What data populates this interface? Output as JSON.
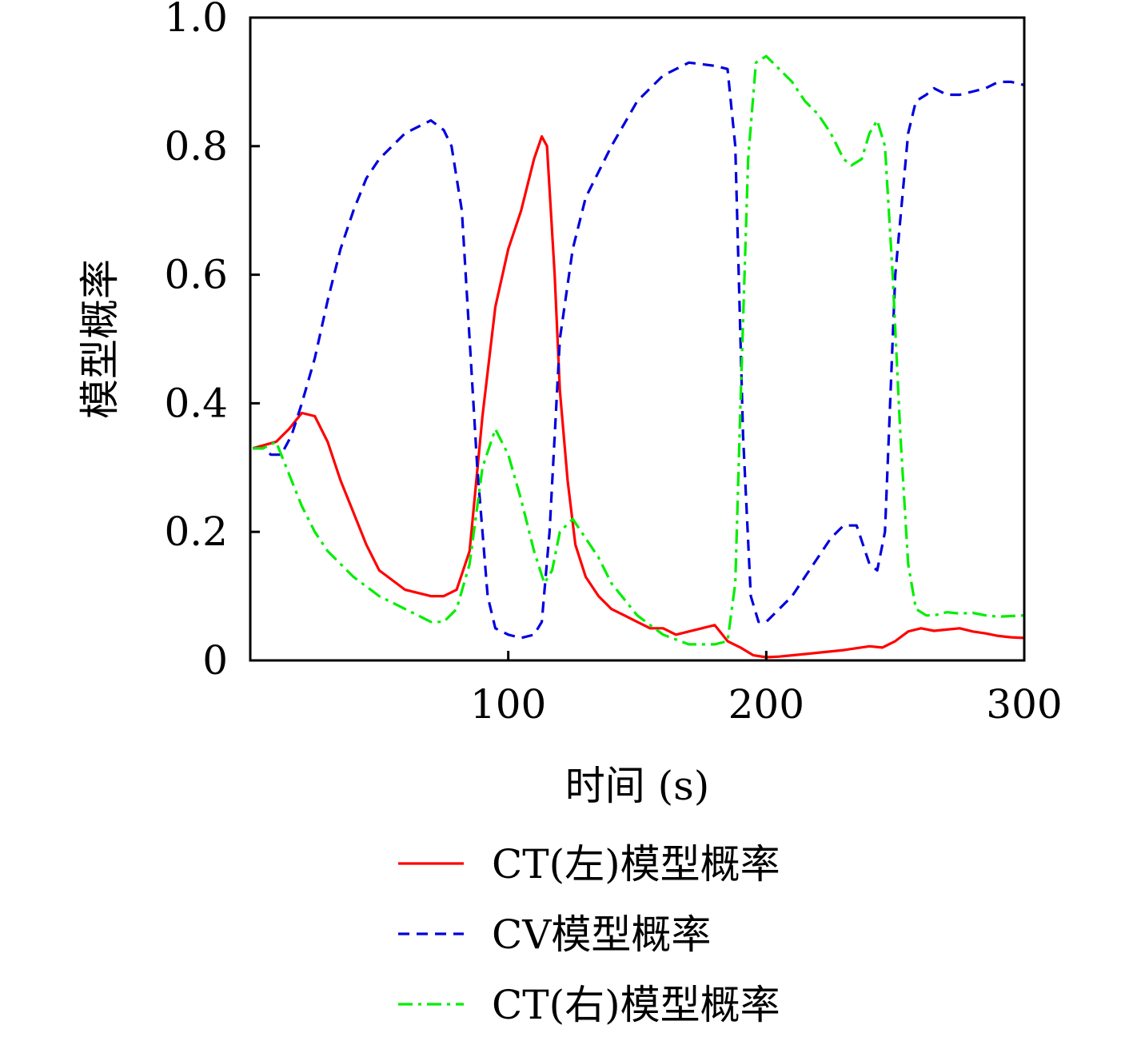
{
  "chart_data": {
    "type": "line",
    "title": "",
    "xlabel": "时间 (s)",
    "ylabel": "模型概率",
    "xlim": [
      0,
      300
    ],
    "ylim": [
      0,
      1
    ],
    "x_ticks": [
      100,
      200,
      300
    ],
    "x_tick_labels": [
      "100",
      "200",
      "300"
    ],
    "y_ticks": [
      0,
      0.2,
      0.4,
      0.6,
      0.8,
      1.0
    ],
    "y_tick_labels": [
      "0",
      "0.2",
      "0.4",
      "0.6",
      "0.8",
      "1.0"
    ],
    "grid": false,
    "legend_position": "bottom",
    "series": [
      {
        "name": "CT(左)模型概率",
        "color": "#ff0000",
        "dash": "solid",
        "x": [
          1,
          10,
          15,
          20,
          25,
          30,
          35,
          40,
          45,
          50,
          55,
          60,
          65,
          70,
          75,
          80,
          85,
          90,
          95,
          100,
          105,
          110,
          113,
          115,
          118,
          120,
          123,
          126,
          130,
          135,
          140,
          145,
          150,
          155,
          160,
          165,
          170,
          175,
          180,
          183,
          185,
          190,
          195,
          200,
          205,
          210,
          220,
          230,
          240,
          245,
          250,
          255,
          260,
          265,
          270,
          275,
          280,
          285,
          290,
          295,
          300
        ],
        "y": [
          0.33,
          0.34,
          0.36,
          0.385,
          0.38,
          0.34,
          0.28,
          0.23,
          0.18,
          0.14,
          0.125,
          0.11,
          0.105,
          0.1,
          0.1,
          0.11,
          0.17,
          0.38,
          0.55,
          0.64,
          0.7,
          0.78,
          0.815,
          0.8,
          0.6,
          0.42,
          0.28,
          0.18,
          0.13,
          0.1,
          0.08,
          0.07,
          0.06,
          0.05,
          0.05,
          0.04,
          0.045,
          0.05,
          0.055,
          0.04,
          0.03,
          0.02,
          0.008,
          0.005,
          0.006,
          0.008,
          0.012,
          0.016,
          0.022,
          0.02,
          0.03,
          0.045,
          0.05,
          0.046,
          0.048,
          0.05,
          0.045,
          0.042,
          0.038,
          0.036,
          0.035
        ]
      },
      {
        "name": "CV模型概率",
        "color": "#0000dd",
        "dash": "dashed",
        "x": [
          1,
          5,
          8,
          12,
          16,
          20,
          25,
          30,
          35,
          40,
          45,
          50,
          55,
          60,
          65,
          70,
          75,
          78,
          82,
          85,
          88,
          92,
          95,
          100,
          105,
          110,
          113,
          116,
          120,
          125,
          130,
          140,
          150,
          160,
          170,
          180,
          185,
          188,
          191,
          194,
          197,
          200,
          205,
          210,
          215,
          220,
          225,
          230,
          235,
          240,
          243,
          246,
          250,
          255,
          258,
          262,
          265,
          270,
          275,
          280,
          285,
          290,
          295,
          300
        ],
        "y": [
          0.33,
          0.33,
          0.32,
          0.32,
          0.35,
          0.4,
          0.47,
          0.56,
          0.64,
          0.7,
          0.75,
          0.78,
          0.8,
          0.82,
          0.83,
          0.84,
          0.825,
          0.8,
          0.7,
          0.5,
          0.3,
          0.1,
          0.05,
          0.04,
          0.035,
          0.04,
          0.06,
          0.2,
          0.5,
          0.64,
          0.72,
          0.8,
          0.87,
          0.91,
          0.93,
          0.925,
          0.92,
          0.8,
          0.35,
          0.1,
          0.06,
          0.06,
          0.08,
          0.1,
          0.13,
          0.16,
          0.19,
          0.21,
          0.21,
          0.15,
          0.14,
          0.2,
          0.6,
          0.82,
          0.87,
          0.88,
          0.89,
          0.88,
          0.88,
          0.885,
          0.89,
          0.9,
          0.9,
          0.895
        ]
      },
      {
        "name": "CT(右)模型概率",
        "color": "#00ee00",
        "dash": "dashdot",
        "x": [
          1,
          5,
          10,
          15,
          20,
          25,
          30,
          35,
          40,
          45,
          50,
          55,
          60,
          65,
          70,
          75,
          80,
          85,
          90,
          95,
          100,
          105,
          110,
          114,
          117,
          120,
          125,
          130,
          135,
          140,
          150,
          160,
          170,
          180,
          185,
          188,
          190,
          193,
          196,
          200,
          205,
          210,
          215,
          220,
          225,
          230,
          233,
          237,
          240,
          243,
          246,
          249,
          252,
          255,
          258,
          262,
          265,
          270,
          275,
          280,
          285,
          290,
          295,
          300
        ],
        "y": [
          0.33,
          0.33,
          0.34,
          0.29,
          0.24,
          0.2,
          0.17,
          0.15,
          0.13,
          0.115,
          0.1,
          0.09,
          0.08,
          0.07,
          0.06,
          0.06,
          0.08,
          0.15,
          0.3,
          0.36,
          0.32,
          0.25,
          0.17,
          0.12,
          0.14,
          0.2,
          0.22,
          0.19,
          0.16,
          0.12,
          0.07,
          0.04,
          0.025,
          0.025,
          0.03,
          0.12,
          0.4,
          0.78,
          0.93,
          0.94,
          0.92,
          0.9,
          0.87,
          0.85,
          0.82,
          0.78,
          0.77,
          0.78,
          0.82,
          0.84,
          0.8,
          0.6,
          0.35,
          0.15,
          0.08,
          0.07,
          0.07,
          0.075,
          0.073,
          0.074,
          0.07,
          0.068,
          0.069,
          0.07
        ]
      }
    ]
  }
}
